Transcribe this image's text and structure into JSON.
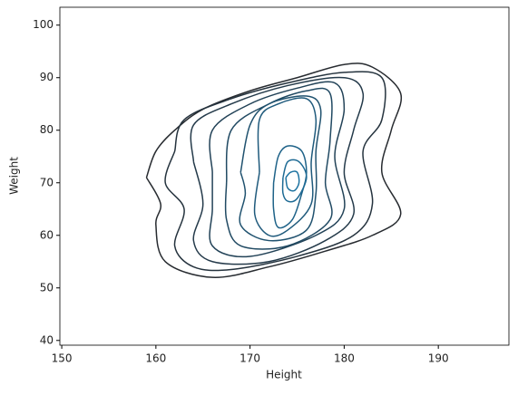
{
  "chart_data": {
    "type": "contour",
    "xlabel": "Height",
    "ylabel": "Weight",
    "xlim": [
      149.8,
      197.5
    ],
    "ylim": [
      39.1,
      103.4
    ],
    "xticks": [
      150,
      160,
      170,
      180,
      190
    ],
    "yticks": [
      40,
      50,
      60,
      70,
      80,
      90,
      100
    ],
    "series": [
      {
        "color": "#272b30",
        "x": [
          159,
          160,
          162,
          165,
          170,
          175,
          180,
          183,
          186,
          185,
          184,
          186,
          183,
          178,
          172,
          166,
          161,
          160,
          160.5,
          159
        ],
        "y": [
          71,
          76,
          80,
          84,
          87.5,
          90,
          92.5,
          92,
          87,
          80,
          72,
          64,
          60,
          57,
          54,
          52,
          55,
          62,
          66,
          71
        ]
      },
      {
        "color": "#25333e",
        "x": [
          162,
          163,
          168,
          174,
          180,
          184,
          184,
          182,
          183,
          181,
          175,
          168,
          164,
          162,
          163,
          161,
          162
        ],
        "y": [
          76,
          82,
          86,
          89,
          91,
          90,
          82,
          76,
          66,
          60,
          56,
          53.5,
          54,
          58,
          65,
          70,
          76
        ]
      },
      {
        "color": "#243a4a",
        "x": [
          164,
          164,
          168,
          174,
          180,
          182,
          181,
          180,
          181,
          178,
          172,
          166,
          164,
          165,
          164
        ],
        "y": [
          74,
          81,
          85,
          88.5,
          90,
          87,
          80,
          72,
          64,
          59,
          55,
          55,
          59,
          66,
          74
        ]
      },
      {
        "color": "#224257",
        "x": [
          166,
          166,
          170,
          175,
          179,
          180,
          179,
          180,
          177,
          170,
          166,
          166,
          166
        ],
        "y": [
          72,
          80,
          85,
          88,
          89,
          84,
          75,
          65,
          60,
          56,
          58,
          65,
          72
        ]
      },
      {
        "color": "#214a63",
        "x": [
          167.5,
          168,
          172,
          176,
          178.5,
          178.5,
          178,
          178.5,
          174,
          169,
          167.5,
          167.5
        ],
        "y": [
          70,
          80,
          85,
          87.5,
          87,
          78,
          70,
          63,
          58,
          58,
          63,
          70
        ]
      },
      {
        "color": "#20526f",
        "x": [
          169,
          170,
          172,
          176,
          177.5,
          177,
          177,
          176,
          172,
          169,
          169.5,
          169
        ],
        "y": [
          72,
          81,
          85,
          86.5,
          84,
          76,
          68,
          61,
          59,
          62,
          68,
          72
        ]
      },
      {
        "color": "#1f5a7c",
        "x": [
          171,
          171,
          173,
          176,
          177,
          176.5,
          176.5,
          174,
          172,
          170.5,
          171
        ],
        "y": [
          72,
          82,
          85,
          86,
          82,
          74,
          66,
          61,
          60,
          64,
          72
        ]
      },
      {
        "color": "#1e6288",
        "x": [
          172.5,
          173,
          174,
          175.5,
          176,
          175.5,
          174.5,
          173,
          172.5,
          172.5
        ],
        "y": [
          70,
          75,
          77,
          76,
          72,
          68,
          63,
          61.5,
          65,
          70
        ]
      },
      {
        "color": "#1d6a94",
        "x": [
          173.5,
          174,
          175.2,
          176,
          175,
          174,
          173.5,
          173.5
        ],
        "y": [
          71,
          74,
          74,
          71,
          67,
          66.5,
          68,
          71
        ]
      },
      {
        "color": "#1c72a0",
        "x": [
          173.8,
          174.3,
          175,
          175.2,
          174.7,
          174,
          173.8
        ],
        "y": [
          71,
          72,
          72,
          70,
          68.5,
          69,
          71
        ]
      }
    ]
  }
}
